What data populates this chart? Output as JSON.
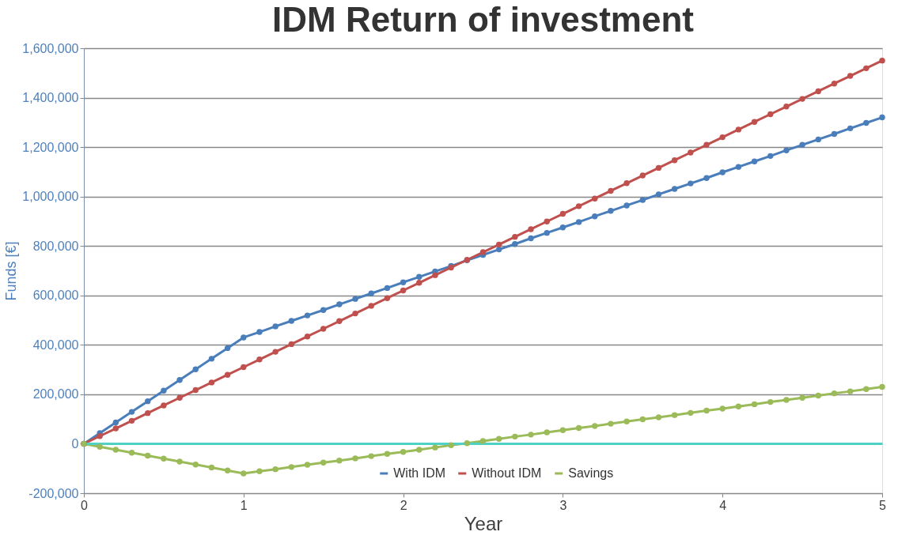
{
  "chart_data": {
    "type": "line",
    "title": "IDM Return of investment",
    "xlabel": "Year",
    "ylabel": "Funds [€]",
    "x": [
      0,
      0.1,
      0.2,
      0.3,
      0.4,
      0.5,
      0.6,
      0.7,
      0.8,
      0.9,
      1,
      1.1,
      1.2,
      1.3,
      1.4,
      1.5,
      1.6,
      1.7,
      1.8,
      1.9,
      2,
      2.1,
      2.2,
      2.3,
      2.4,
      2.5,
      2.6,
      2.7,
      2.8,
      2.9,
      3,
      3.1,
      3.2,
      3.3,
      3.4,
      3.5,
      3.6,
      3.7,
      3.8,
      3.9,
      4,
      4.1,
      4.2,
      4.3,
      4.4,
      4.5,
      4.6,
      4.7,
      4.8,
      4.9,
      5
    ],
    "series": [
      {
        "name": "With IDM",
        "color": "#4a7ebb",
        "values": [
          0,
          43000,
          86000,
          129000,
          172000,
          215000,
          258000,
          301000,
          344000,
          387000,
          430000,
          452000,
          475000,
          497000,
          519000,
          541000,
          564000,
          586000,
          608000,
          630000,
          653000,
          675000,
          697000,
          719000,
          742000,
          764000,
          786000,
          808000,
          831000,
          853000,
          875000,
          897000,
          920000,
          942000,
          964000,
          986000,
          1009000,
          1031000,
          1053000,
          1075000,
          1098000,
          1120000,
          1142000,
          1164000,
          1187000,
          1209000,
          1231000,
          1253000,
          1276000,
          1298000,
          1320000
        ]
      },
      {
        "name": "Without IDM",
        "color": "#c0504d",
        "values": [
          0,
          31000,
          62000,
          93000,
          124000,
          155000,
          186000,
          217000,
          248000,
          279000,
          310000,
          341000,
          372000,
          403000,
          434000,
          465000,
          496000,
          527000,
          558000,
          589000,
          620000,
          651000,
          682000,
          713000,
          744000,
          775000,
          806000,
          837000,
          868000,
          899000,
          930000,
          961000,
          992000,
          1023000,
          1054000,
          1085000,
          1116000,
          1147000,
          1178000,
          1209000,
          1240000,
          1271000,
          1302000,
          1333000,
          1364000,
          1395000,
          1426000,
          1457000,
          1488000,
          1519000,
          1550000
        ]
      },
      {
        "name": "Savings",
        "color": "#9bbb59",
        "values": [
          0,
          -12000,
          -24000,
          -36000,
          -48000,
          -60000,
          -72000,
          -84000,
          -96000,
          -108000,
          -120000,
          -111000,
          -103000,
          -94000,
          -85000,
          -76000,
          -68000,
          -59000,
          -50000,
          -41000,
          -33000,
          -24000,
          -15000,
          -6000,
          2000,
          11000,
          20000,
          29000,
          37000,
          46000,
          55000,
          64000,
          72000,
          81000,
          90000,
          99000,
          107000,
          116000,
          125000,
          134000,
          142000,
          151000,
          160000,
          169000,
          177000,
          186000,
          195000,
          204000,
          212000,
          221000,
          230000
        ]
      }
    ],
    "xlim": [
      0,
      5
    ],
    "xticks": [
      0,
      1,
      2,
      3,
      4,
      5
    ],
    "ylim": [
      -200000,
      1600000
    ],
    "yticks": [
      {
        "value": -200000,
        "label": "-200,000"
      },
      0,
      {
        "value": 200000,
        "label": "200,000"
      },
      {
        "value": 400000,
        "label": "400,000"
      },
      {
        "value": 600000,
        "label": "600,000"
      },
      {
        "value": 800000,
        "label": "800,000"
      },
      {
        "value": 1000000,
        "label": "1,000,000"
      },
      {
        "value": 1200000,
        "label": "1,200,000"
      },
      {
        "value": 1400000,
        "label": "1,400,000"
      },
      {
        "value": 1600000,
        "label": "1,600,000"
      }
    ],
    "ref_lines": [
      {
        "axis": "y",
        "value": 0,
        "color": "#4fd1c5"
      }
    ],
    "grid": "y",
    "legend": "bottom",
    "marker": "circle",
    "line_style": "solid"
  }
}
